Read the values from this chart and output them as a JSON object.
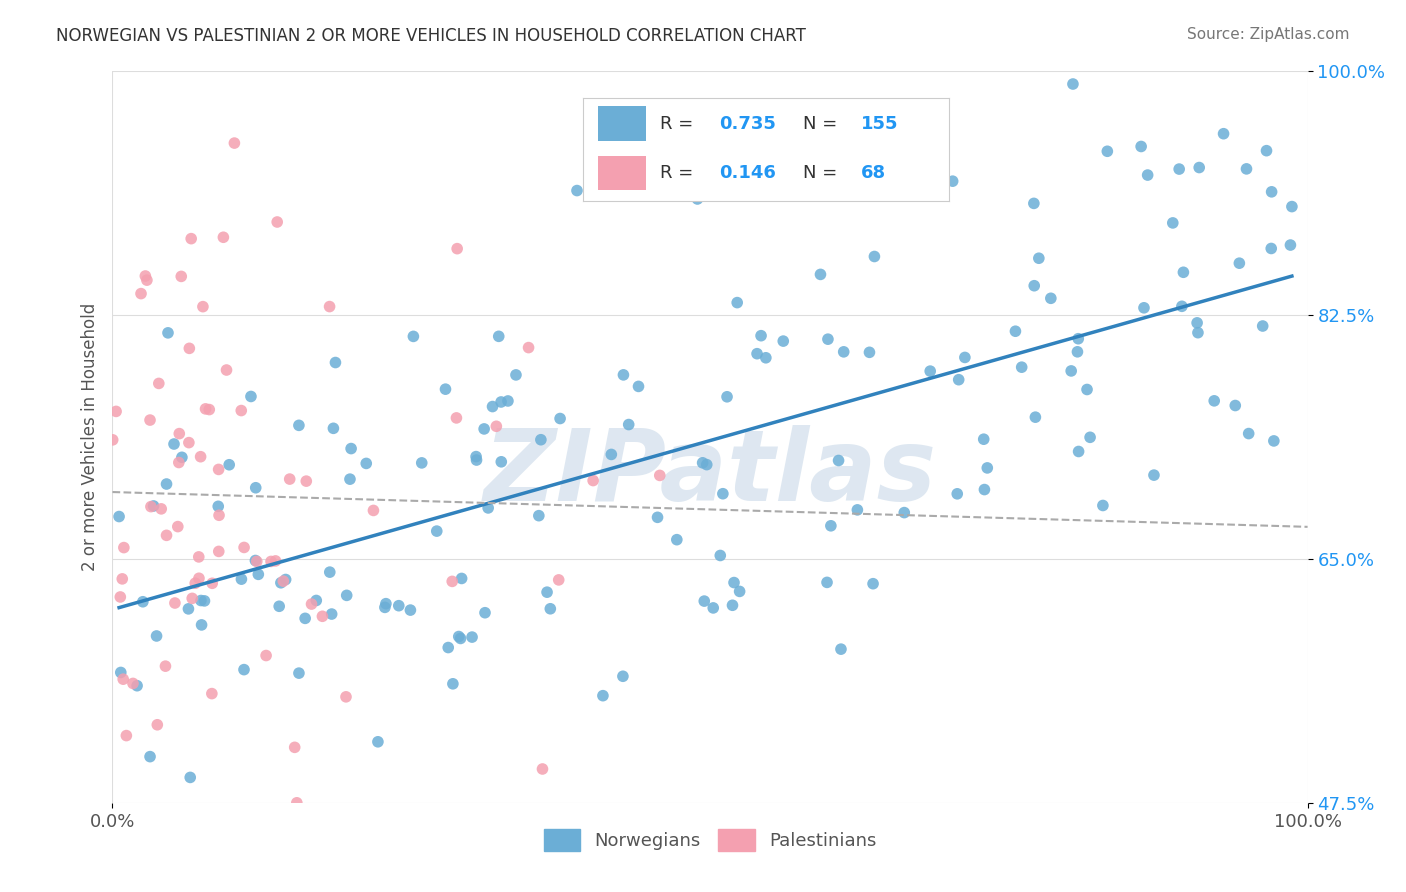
{
  "title": "NORWEGIAN VS PALESTINIAN 2 OR MORE VEHICLES IN HOUSEHOLD CORRELATION CHART",
  "source": "Source: ZipAtlas.com",
  "ylabel": "2 or more Vehicles in Household",
  "xlim": [
    0,
    100
  ],
  "ylim": [
    47.5,
    100
  ],
  "x_tick_labels": [
    "0.0%",
    "100.0%"
  ],
  "y_ticks": [
    47.5,
    65.0,
    82.5,
    100.0
  ],
  "y_tick_labels": [
    "47.5%",
    "65.0%",
    "82.5%",
    "100.0%"
  ],
  "norwegian_color": "#6baed6",
  "palestinian_color": "#f4a0b0",
  "trend_line_norwegian_color": "#3182bd",
  "trend_line_palestinian_color": "#de8fa0",
  "R_norwegian": 0.735,
  "N_norwegian": 155,
  "R_palestinian": 0.146,
  "N_palestinian": 68,
  "watermark": "ZIPatlas",
  "watermark_color": "#c8d8e8",
  "norwegian_seed": 42,
  "palestinian_seed": 7,
  "legend_labels": [
    "Norwegians",
    "Palestinians"
  ],
  "background_color": "#ffffff",
  "grid_color": "#dddddd"
}
